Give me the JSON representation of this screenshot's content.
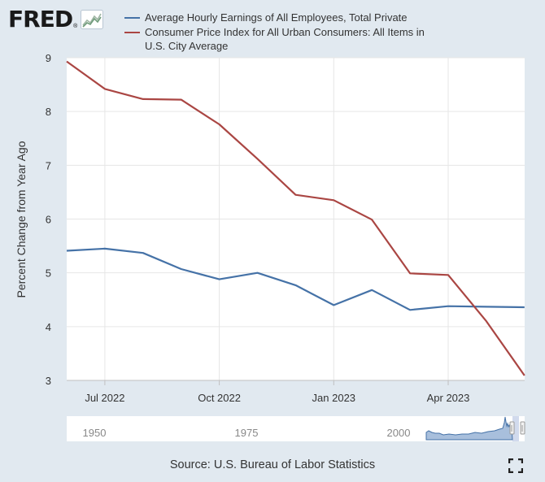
{
  "logo": {
    "text": "FRED",
    "reg": "®"
  },
  "legend": {
    "items": [
      {
        "label": "Average Hourly Earnings of All Employees, Total Private",
        "color": "#4572a7"
      },
      {
        "label": "Consumer Price Index for All Urban Consumers: All Items in U.S. City Average",
        "color": "#aa4643"
      }
    ]
  },
  "source": "Source: U.S. Bureau of Labor Statistics",
  "chart_data": {
    "type": "line",
    "ylabel": "Percent Change from Year Ago",
    "ylim": [
      3,
      9
    ],
    "yticks": [
      3,
      4,
      5,
      6,
      7,
      8,
      9
    ],
    "x": [
      "2022-06",
      "2022-07",
      "2022-08",
      "2022-09",
      "2022-10",
      "2022-11",
      "2022-12",
      "2023-01",
      "2023-02",
      "2023-03",
      "2023-04",
      "2023-05",
      "2023-06"
    ],
    "xticks": [
      {
        "index": 1,
        "label": "Jul 2022"
      },
      {
        "index": 4,
        "label": "Oct 2022"
      },
      {
        "index": 7,
        "label": "Jan 2023"
      },
      {
        "index": 10,
        "label": "Apr 2023"
      }
    ],
    "series": [
      {
        "name": "Average Hourly Earnings of All Employees, Total Private",
        "color": "#4572a7",
        "values": [
          5.41,
          5.45,
          5.37,
          5.07,
          4.88,
          5.0,
          4.77,
          4.4,
          4.68,
          4.31,
          4.38,
          4.37,
          4.36
        ]
      },
      {
        "name": "Consumer Price Index for All Urban Consumers: All Items in U.S. City Average",
        "color": "#aa4643",
        "values": [
          8.93,
          8.42,
          8.23,
          8.22,
          7.76,
          7.12,
          6.45,
          6.35,
          5.99,
          4.99,
          4.96,
          4.1,
          3.09
        ]
      }
    ],
    "grid": true,
    "navigator": {
      "labels": [
        "1950",
        "1975",
        "2000"
      ]
    }
  }
}
